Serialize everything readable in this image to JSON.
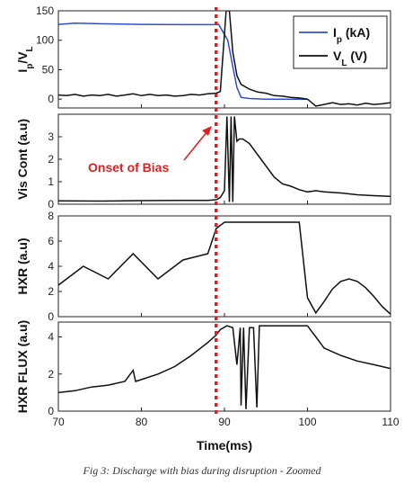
{
  "caption": "Fig 3: Discharge with bias during disruption - Zoomed",
  "chart_data": {
    "type": "line",
    "xlabel": "Time(ms)",
    "xlim": [
      70,
      110
    ],
    "xticks": [
      70,
      80,
      90,
      100,
      110
    ],
    "annotation": {
      "text": "Onset of Bias",
      "x": 89,
      "color": "#e02020"
    },
    "marker": {
      "x": 89,
      "style": "dotted",
      "color": "#e02020"
    },
    "panels": [
      {
        "ylabel": "I_p/V_L",
        "ylim": [
          -15,
          150
        ],
        "yticks": [
          0,
          50,
          100,
          150
        ],
        "legend": {
          "placement": "top-right",
          "entries": [
            {
              "text": "I_p (kA)",
              "color": "#2f4fd0"
            },
            {
              "text": "V_L (V)",
              "color": "#111111"
            }
          ]
        },
        "series": [
          {
            "name": "I_p (kA)",
            "color": "#2f4fd0",
            "x": [
              70,
              72,
              75,
              80,
              85,
              89,
              89.3,
              90.4,
              91.0,
              91.5,
              92.0,
              93,
              95,
              97,
              99,
              100
            ],
            "y": [
              127,
              129,
              128,
              127,
              126.5,
              126.5,
              127,
              100,
              55,
              20,
              3,
              1,
              0,
              0,
              0,
              0
            ]
          },
          {
            "name": "V_L (V)",
            "color": "#111111",
            "x": [
              70,
              71,
              72,
              73,
              74,
              75,
              76,
              77,
              78,
              79,
              80,
              81,
              82,
              83,
              84,
              85,
              86,
              87,
              88,
              89,
              89.5,
              90.2,
              90.6,
              91.0,
              91.5,
              92.0,
              93,
              94,
              95,
              96,
              97,
              98,
              99,
              100,
              101,
              102,
              103,
              104,
              105,
              106,
              107,
              108,
              109,
              110
            ],
            "y": [
              7,
              6,
              8,
              5,
              7,
              6,
              8,
              5,
              7,
              9,
              6,
              8,
              6,
              7,
              5,
              6,
              8,
              7,
              9,
              10,
              13,
              150,
              150,
              80,
              40,
              25,
              17,
              12,
              10,
              6,
              5,
              3,
              2,
              0,
              -12,
              -9,
              -6,
              -9,
              -8,
              -10,
              -7,
              -9,
              -8,
              -6
            ]
          }
        ]
      },
      {
        "ylabel": "Vis Cont (a.u)",
        "ylim": [
          0,
          4
        ],
        "yticks": [
          0,
          1,
          2,
          3
        ],
        "series": [
          {
            "name": "",
            "color": "#111111",
            "x": [
              70,
              75,
              80,
              85,
              88,
              89,
              89.5,
              90.0,
              90.3,
              90.6,
              90.8,
              91.0,
              91.2,
              91.5,
              91.8,
              92.2,
              93,
              94,
              95,
              96,
              97,
              98,
              99,
              100,
              101,
              102,
              104,
              106,
              108,
              110
            ],
            "y": [
              0.15,
              0.14,
              0.16,
              0.17,
              0.17,
              0.2,
              0.3,
              0.6,
              3.9,
              0.1,
              3.9,
              0.1,
              3.9,
              2.8,
              2.9,
              2.9,
              2.7,
              2.2,
              1.7,
              1.2,
              0.9,
              0.8,
              0.65,
              0.55,
              0.6,
              0.55,
              0.5,
              0.42,
              0.38,
              0.35
            ]
          }
        ]
      },
      {
        "ylabel": "HXR (a.u)",
        "ylim": [
          0,
          8
        ],
        "yticks": [
          0,
          2,
          4,
          6,
          8
        ],
        "series": [
          {
            "name": "",
            "color": "#111111",
            "x": [
              70,
              73,
              76,
              79,
              82,
              85,
              88,
              89,
              90,
              92,
              94,
              96,
              98,
              99,
              100,
              101,
              102,
              103,
              104,
              105,
              106,
              107,
              108,
              109,
              110
            ],
            "y": [
              2.5,
              4,
              3,
              5,
              3,
              4.5,
              5,
              7,
              7.5,
              7.5,
              7.5,
              7.5,
              7.5,
              7.5,
              1.5,
              0.3,
              1.2,
              2.2,
              2.8,
              3.0,
              2.8,
              2.3,
              1.6,
              0.8,
              0.2
            ]
          }
        ]
      },
      {
        "ylabel": "HXR FLUX (a.u)",
        "ylim": [
          0,
          4.8
        ],
        "yticks": [
          0,
          2,
          4
        ],
        "series": [
          {
            "name": "",
            "color": "#111111",
            "x": [
              70,
              72,
              74,
              76,
              78,
              79,
              79.3,
              80,
              82,
              84,
              86,
              88,
              89,
              89.5,
              90.3,
              91.0,
              91.5,
              91.9,
              92.0,
              92.3,
              92.6,
              93.0,
              93.5,
              93.9,
              94.2,
              95,
              97,
              99,
              100,
              100.5,
              101,
              102,
              104,
              106,
              108,
              110
            ],
            "y": [
              1.0,
              1.1,
              1.3,
              1.4,
              1.6,
              2.2,
              1.6,
              1.7,
              2.0,
              2.4,
              3.0,
              3.7,
              4.1,
              4.4,
              4.6,
              4.5,
              2.5,
              4.5,
              0.3,
              4.5,
              0.1,
              4.5,
              4.5,
              0.2,
              4.6,
              4.6,
              4.6,
              4.6,
              4.6,
              4.3,
              4.0,
              3.4,
              3.0,
              2.7,
              2.5,
              2.3
            ]
          }
        ]
      }
    ]
  }
}
